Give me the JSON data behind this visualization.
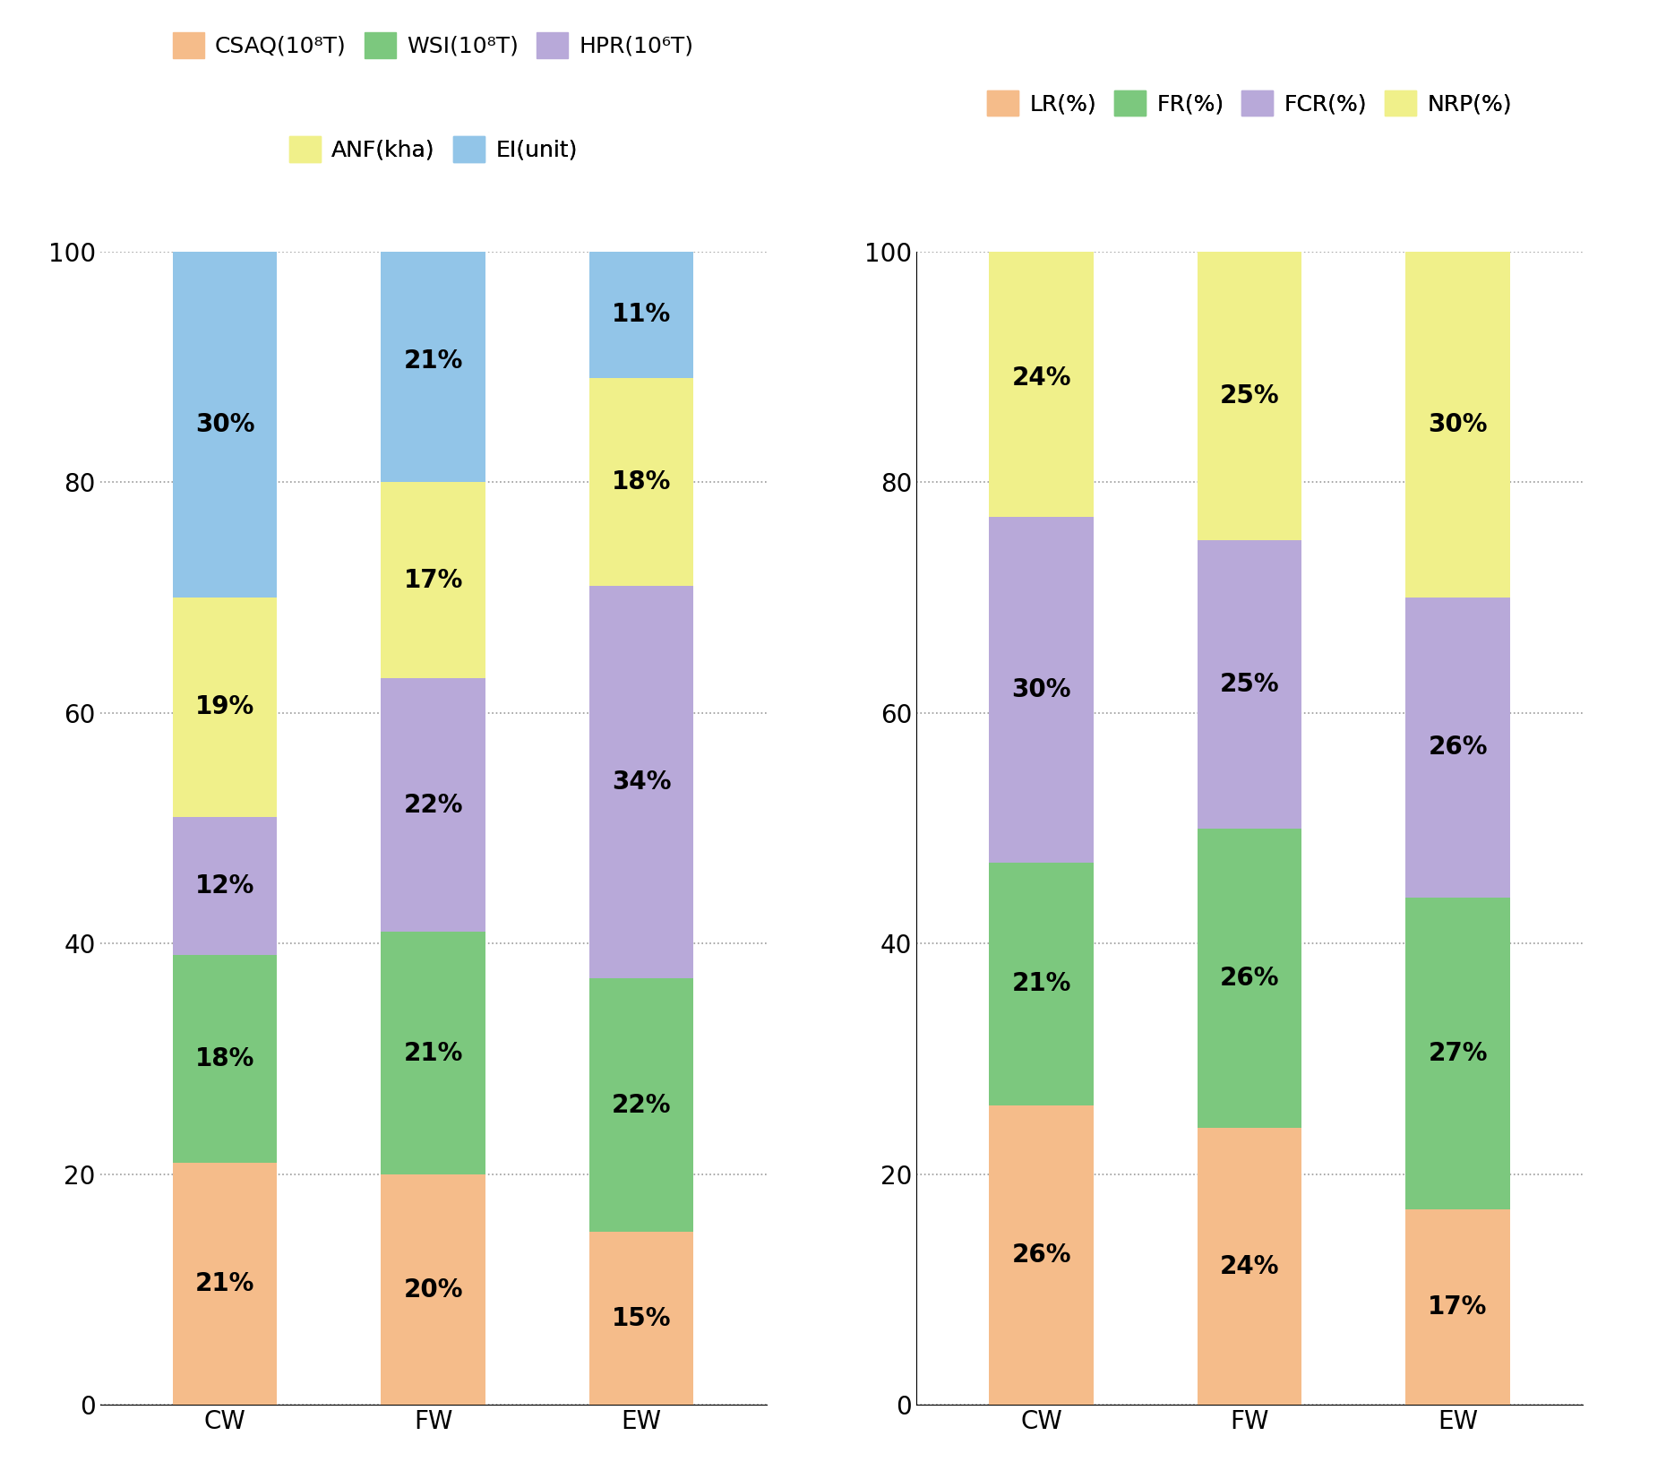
{
  "left_categories": [
    "CW",
    "FW",
    "EW"
  ],
  "left_series": {
    "CSAQ": [
      21,
      20,
      15
    ],
    "WSI": [
      18,
      21,
      22
    ],
    "HPR": [
      12,
      22,
      34
    ],
    "ANF": [
      19,
      17,
      18
    ],
    "EI": [
      30,
      21,
      11
    ]
  },
  "left_colors": {
    "CSAQ": "#F5BC8A",
    "WSI": "#7CC87E",
    "HPR": "#B8A9D9",
    "ANF": "#F0F08A",
    "EI": "#92C5E8"
  },
  "left_legend": [
    {
      "label": "CSAQ(10⁸T)",
      "color": "#F5BC8A"
    },
    {
      "label": "WSI(10⁸T)",
      "color": "#7CC87E"
    },
    {
      "label": "HPR(10⁶T)",
      "color": "#B8A9D9"
    },
    {
      "label": "ANF(kha)",
      "color": "#F0F08A"
    },
    {
      "label": "EI(unit)",
      "color": "#92C5E8"
    }
  ],
  "right_categories": [
    "CW",
    "FW",
    "EW"
  ],
  "right_series": {
    "LR": [
      26,
      24,
      17
    ],
    "FR": [
      21,
      26,
      27
    ],
    "FCR": [
      30,
      25,
      26
    ],
    "NRP": [
      24,
      25,
      30
    ]
  },
  "right_colors": {
    "LR": "#F5BC8A",
    "FR": "#7CC87E",
    "FCR": "#B8A9D9",
    "NRP": "#F0F08A"
  },
  "right_legend": [
    {
      "label": "LR(%)",
      "color": "#F5BC8A"
    },
    {
      "label": "FR(%)",
      "color": "#7CC87E"
    },
    {
      "label": "FCR(%)",
      "color": "#B8A9D9"
    },
    {
      "label": "NRP(%)",
      "color": "#F0F08A"
    }
  ],
  "ylim": [
    0,
    100
  ],
  "yticks": [
    0,
    20,
    40,
    60,
    80,
    100
  ],
  "bar_width": 0.5,
  "label_fontsize": 20,
  "tick_fontsize": 20,
  "legend_fontsize": 18
}
